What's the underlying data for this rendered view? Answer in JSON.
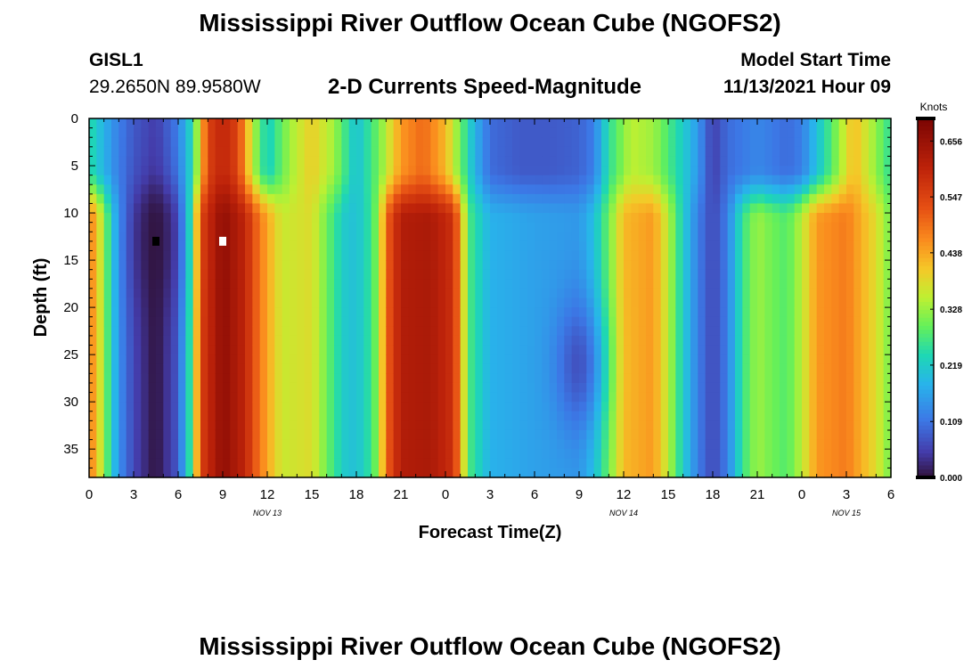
{
  "header": {
    "title": "Mississippi River Outflow Ocean Cube (NGOFS2)",
    "station": "GISL1",
    "coords": "29.2650N  89.9580W",
    "subtitle": "2-D Currents Speed-Magnitude",
    "model_label": "Model Start Time",
    "model_time": "11/13/2021 Hour 09"
  },
  "footer": {
    "title": "Mississippi River Outflow Ocean Cube (NGOFS2)"
  },
  "chart_data": {
    "type": "heatmap",
    "title": "2-D Currents Speed-Magnitude",
    "xlabel": "Forecast Time(Z)",
    "ylabel": "Depth (ft)",
    "x_range_hours": [
      0,
      54
    ],
    "x_ticks": [
      {
        "hour": 0,
        "label": "0"
      },
      {
        "hour": 3,
        "label": "3"
      },
      {
        "hour": 6,
        "label": "6"
      },
      {
        "hour": 9,
        "label": "9"
      },
      {
        "hour": 12,
        "label": "12"
      },
      {
        "hour": 15,
        "label": "15"
      },
      {
        "hour": 18,
        "label": "18"
      },
      {
        "hour": 21,
        "label": "21"
      },
      {
        "hour": 24,
        "label": "0"
      },
      {
        "hour": 27,
        "label": "3"
      },
      {
        "hour": 30,
        "label": "6"
      },
      {
        "hour": 33,
        "label": "9"
      },
      {
        "hour": 36,
        "label": "12"
      },
      {
        "hour": 39,
        "label": "15"
      },
      {
        "hour": 42,
        "label": "18"
      },
      {
        "hour": 45,
        "label": "21"
      },
      {
        "hour": 48,
        "label": "0"
      },
      {
        "hour": 51,
        "label": "3"
      },
      {
        "hour": 54,
        "label": "6"
      }
    ],
    "date_labels": [
      {
        "hour": 12,
        "label": "NOV 13"
      },
      {
        "hour": 36,
        "label": "NOV 14"
      },
      {
        "hour": 51,
        "label": "NOV 15"
      }
    ],
    "y_range_ft": [
      0,
      38
    ],
    "y_ticks": [
      0,
      5,
      10,
      15,
      20,
      25,
      30,
      35
    ],
    "colorbar": {
      "label": "Knots",
      "min": 0.0,
      "max": 0.7,
      "ticks": [
        "0.000",
        "0.109",
        "0.219",
        "0.328",
        "0.438",
        "0.547",
        "0.656"
      ]
    },
    "surface_profile_knots": [
      [
        0,
        0.25
      ],
      [
        1,
        0.18
      ],
      [
        2,
        0.12
      ],
      [
        3,
        0.08
      ],
      [
        4.5,
        0.05
      ],
      [
        6,
        0.12
      ],
      [
        7,
        0.25
      ],
      [
        8,
        0.55
      ],
      [
        9,
        0.6
      ],
      [
        10,
        0.55
      ],
      [
        11,
        0.35
      ],
      [
        12,
        0.22
      ],
      [
        13.5,
        0.33
      ],
      [
        15,
        0.4
      ],
      [
        16.5,
        0.33
      ],
      [
        18,
        0.2
      ],
      [
        19.5,
        0.3
      ],
      [
        21,
        0.45
      ],
      [
        22.5,
        0.5
      ],
      [
        24,
        0.42
      ],
      [
        25,
        0.3
      ],
      [
        26,
        0.18
      ],
      [
        27,
        0.1
      ],
      [
        29,
        0.08
      ],
      [
        31,
        0.08
      ],
      [
        33,
        0.09
      ],
      [
        34,
        0.12
      ],
      [
        35,
        0.25
      ],
      [
        36.5,
        0.35
      ],
      [
        38,
        0.33
      ],
      [
        40,
        0.22
      ],
      [
        41,
        0.15
      ],
      [
        42,
        0.05
      ],
      [
        43,
        0.1
      ],
      [
        45,
        0.13
      ],
      [
        47,
        0.1
      ],
      [
        48,
        0.12
      ],
      [
        49,
        0.2
      ],
      [
        50,
        0.28
      ],
      [
        51.5,
        0.42
      ],
      [
        53,
        0.32
      ],
      [
        54,
        0.25
      ]
    ],
    "subsurface_profile_knots": [
      [
        0,
        0.48
      ],
      [
        0.5,
        0.42
      ],
      [
        1,
        0.32
      ],
      [
        2,
        0.14
      ],
      [
        3,
        0.06
      ],
      [
        4.5,
        0.0
      ],
      [
        6,
        0.08
      ],
      [
        7,
        0.3
      ],
      [
        7.5,
        0.55
      ],
      [
        9,
        0.67
      ],
      [
        10.5,
        0.6
      ],
      [
        11.5,
        0.48
      ],
      [
        13,
        0.36
      ],
      [
        15,
        0.38
      ],
      [
        16.5,
        0.26
      ],
      [
        17.5,
        0.2
      ],
      [
        18.5,
        0.22
      ],
      [
        19.5,
        0.32
      ],
      [
        20,
        0.5
      ],
      [
        21,
        0.62
      ],
      [
        23,
        0.63
      ],
      [
        24.5,
        0.58
      ],
      [
        25,
        0.46
      ],
      [
        25.5,
        0.28
      ],
      [
        27,
        0.18
      ],
      [
        30,
        0.16
      ],
      [
        33,
        0.15
      ],
      [
        34,
        0.2
      ],
      [
        35,
        0.3
      ],
      [
        36,
        0.42
      ],
      [
        38,
        0.45
      ],
      [
        39,
        0.35
      ],
      [
        40,
        0.22
      ],
      [
        41,
        0.12
      ],
      [
        42,
        0.06
      ],
      [
        43,
        0.12
      ],
      [
        44,
        0.26
      ],
      [
        45,
        0.33
      ],
      [
        46,
        0.3
      ],
      [
        47,
        0.28
      ],
      [
        48,
        0.35
      ],
      [
        49,
        0.45
      ],
      [
        51,
        0.48
      ],
      [
        53,
        0.38
      ],
      [
        54,
        0.3
      ]
    ],
    "mid_depth_dips": [
      {
        "hour": 4.5,
        "depth_ft": 13,
        "value": 0.0
      },
      {
        "hour": 33,
        "depth_ft": 26,
        "value": 0.02
      }
    ],
    "markers": [
      {
        "hour": 4.5,
        "depth_ft": 13,
        "color": "#000000"
      },
      {
        "hour": 9,
        "depth_ft": 13,
        "color": "#ffffff"
      }
    ]
  }
}
